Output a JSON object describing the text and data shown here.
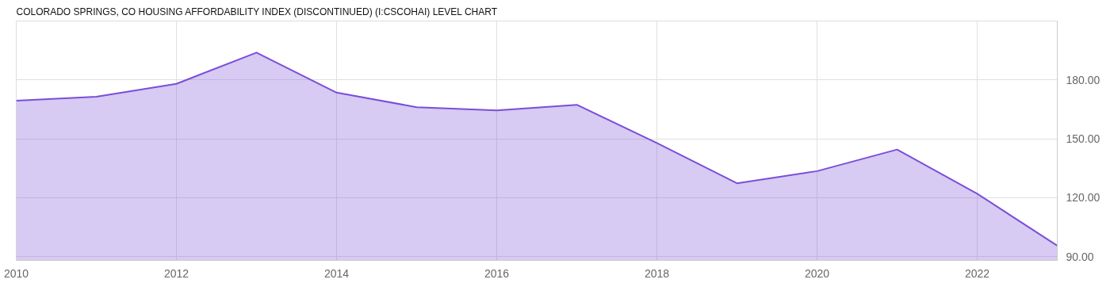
{
  "chart_data": {
    "type": "area",
    "title": "COLORADO SPRINGS, CO HOUSING AFFORDABILITY INDEX (DISCONTINUED) (I:CSCOHAI) LEVEL CHART",
    "x": [
      2010,
      2011,
      2012,
      2013,
      2014,
      2015,
      2016,
      2017,
      2018,
      2019,
      2020,
      2021,
      2022,
      2023
    ],
    "series": [
      {
        "color": "#7a4fd8",
        "values": [
          169.4,
          171.4,
          178,
          193.9,
          173.5,
          166.1,
          164.5,
          167.3,
          147.8,
          127.3,
          133.5,
          144.5,
          122,
          95.5
        ]
      }
    ],
    "xlim": [
      2010,
      2023
    ],
    "xticks": [
      2010,
      2012,
      2014,
      2016,
      2018,
      2020,
      2022
    ],
    "ylim": [
      88,
      210
    ],
    "yticks": [
      {
        "value": 90,
        "label": "90.00"
      },
      {
        "value": 120,
        "label": "120.00"
      },
      {
        "value": 150,
        "label": "150.00"
      },
      {
        "value": 180,
        "label": "180.00"
      }
    ],
    "grid": true
  }
}
